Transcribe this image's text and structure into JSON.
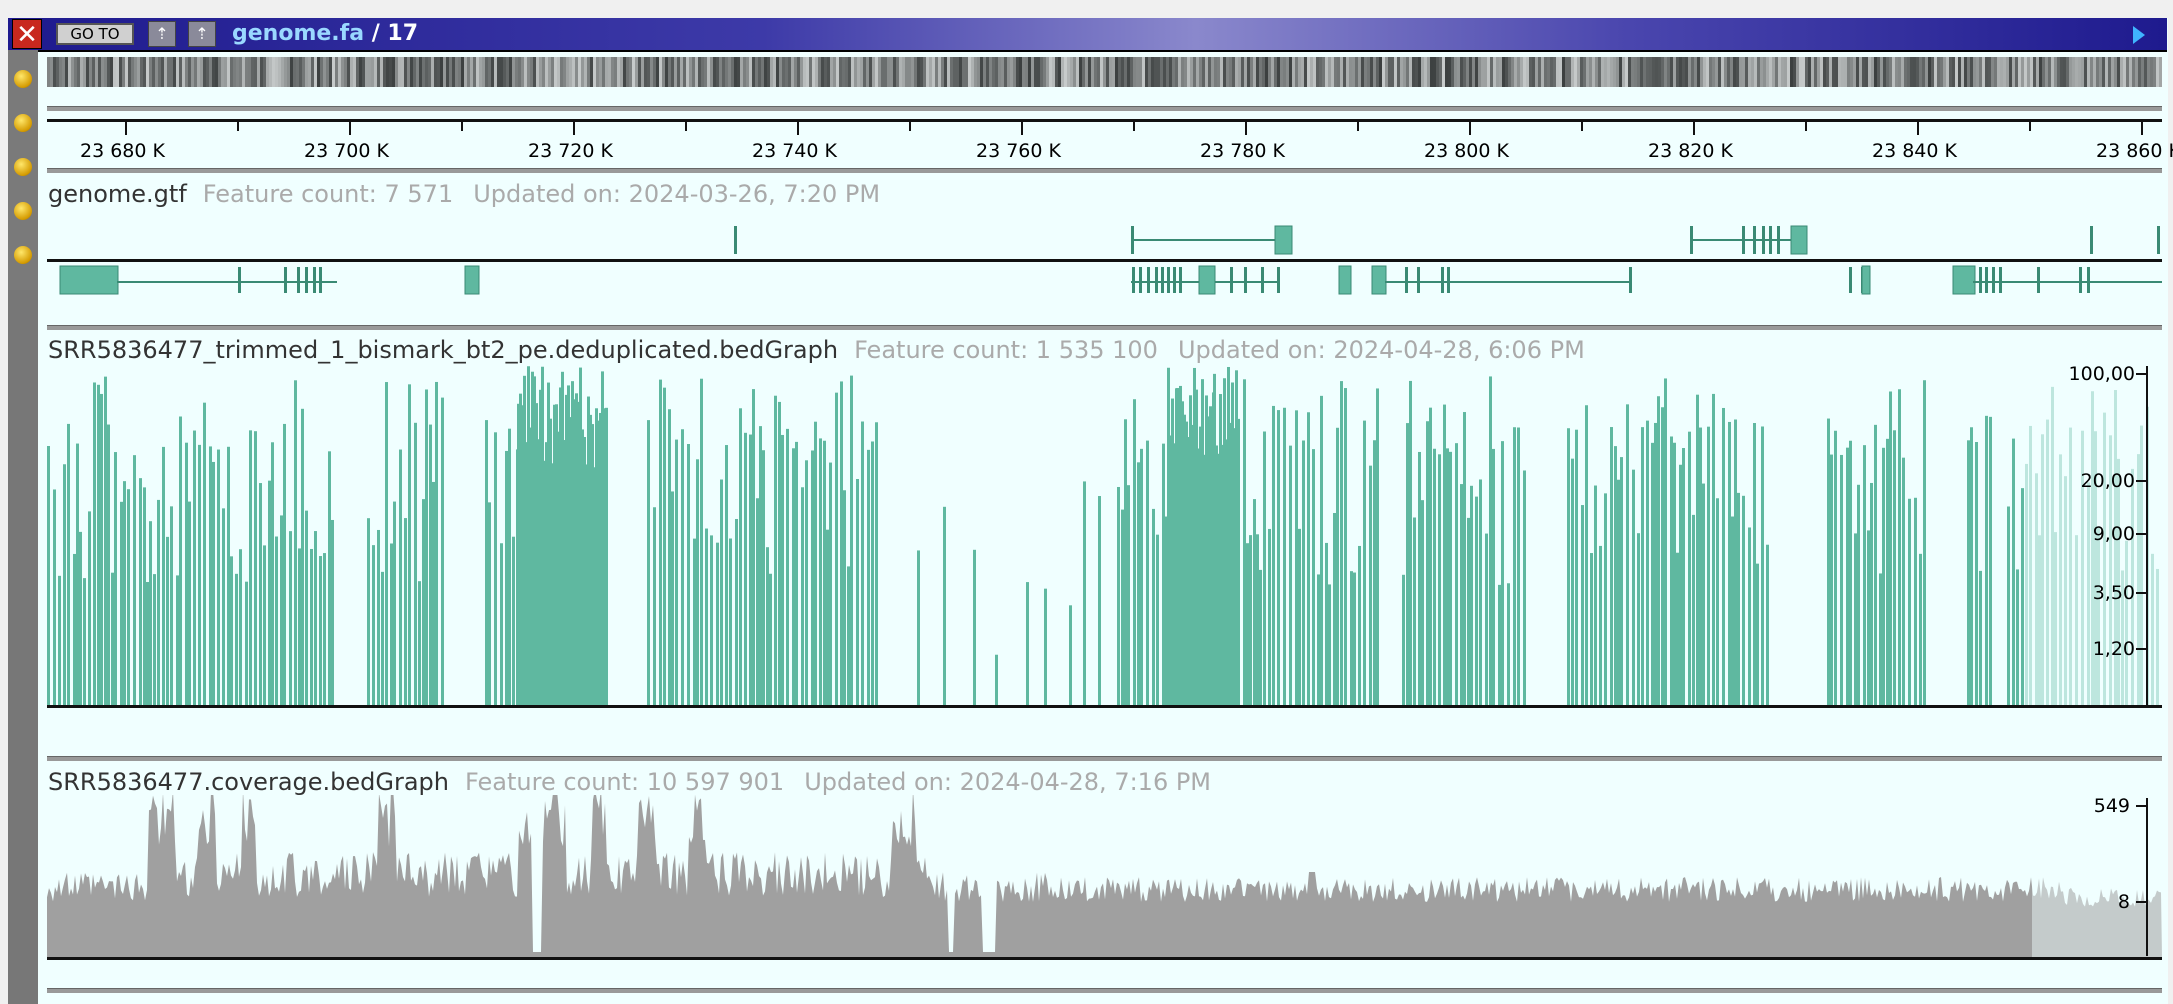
{
  "titlebar": {
    "goto_label": "GO TO",
    "file": "genome.fa",
    "chrom": " / 17",
    "close_icon": "close-icon",
    "up_icon": "upload-arrow-icon",
    "play_icon": "play-icon"
  },
  "ruler": {
    "labels": [
      "23 680 K",
      "23 700 K",
      "23 720 K",
      "23 740 K",
      "23 760 K",
      "23 780 K",
      "23 800 K",
      "23 820 K",
      "23 840 K",
      "23 860 K"
    ]
  },
  "tracks": {
    "gtf": {
      "name": "genome.gtf",
      "feature_count": "Feature count: 7 571",
      "updated": "Updated on: 2024-03-26, 7:20 PM"
    },
    "methylation": {
      "name": "SRR5836477_trimmed_1_bismark_bt2_pe.deduplicated.bedGraph",
      "feature_count": "Feature count: 1 535 100",
      "updated": "Updated on: 2024-04-28, 6:06 PM",
      "axis_labels": [
        "100,00",
        "20,00",
        "9,00",
        "3,50",
        "1,20"
      ]
    },
    "coverage": {
      "name": "SRR5836477.coverage.bedGraph",
      "feature_count": "Feature count: 10 597 901",
      "updated": "Updated on: 2024-04-28, 7:16 PM",
      "axis_labels": [
        "549",
        "8"
      ]
    }
  },
  "colors": {
    "feature": "#5fb8a0",
    "coverage": "#a0a0a0",
    "background": "#f0ffff",
    "titlebar": "#1e1a8e"
  }
}
